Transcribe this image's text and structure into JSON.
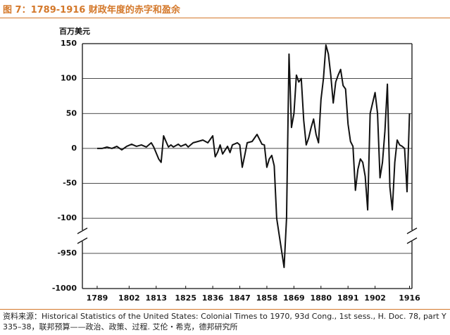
{
  "chart_data": {
    "type": "line",
    "title": "图 7：1789-1916 财政年度的赤字和盈余",
    "y_label": "百万美元",
    "source": "资料来源：Historical Statistics of the United States: Colonial Times to 1970, 93d Cong., 1st sess., H. Doc. 78, part Y 335–38，联邦预算——政治、政策、过程. 艾伦・希克，德邦研究所",
    "x": [
      1789,
      1791,
      1793,
      1795,
      1797,
      1799,
      1801,
      1803,
      1805,
      1807,
      1809,
      1811,
      1812,
      1814,
      1815,
      1816,
      1817,
      1818,
      1819,
      1820,
      1822,
      1823,
      1825,
      1826,
      1828,
      1830,
      1832,
      1834,
      1836,
      1837,
      1838,
      1839,
      1840,
      1842,
      1843,
      1844,
      1846,
      1847,
      1848,
      1849,
      1850,
      1852,
      1854,
      1856,
      1857,
      1858,
      1859,
      1860,
      1861,
      1862,
      1865,
      1866,
      1867,
      1868,
      1869,
      1870,
      1871,
      1872,
      1873,
      1874,
      1875,
      1876,
      1877,
      1878,
      1879,
      1880,
      1881,
      1882,
      1883,
      1884,
      1885,
      1886,
      1887,
      1888,
      1889,
      1890,
      1891,
      1892,
      1893,
      1894,
      1895,
      1896,
      1897,
      1898,
      1899,
      1900,
      1901,
      1902,
      1903,
      1904,
      1905,
      1906,
      1907,
      1908,
      1909,
      1910,
      1911,
      1912,
      1913,
      1914,
      1915,
      1916
    ],
    "series": [
      {
        "color": "#111111",
        "values": [
          0,
          0,
          2,
          0,
          3,
          -2,
          3,
          6,
          3,
          5,
          2,
          8,
          2,
          -15,
          -20,
          18,
          10,
          2,
          5,
          2,
          6,
          3,
          6,
          2,
          8,
          10,
          12,
          8,
          18,
          -12,
          -5,
          5,
          -8,
          3,
          -6,
          5,
          8,
          5,
          -27,
          -10,
          8,
          10,
          20,
          6,
          5,
          -27,
          -15,
          -10,
          -25,
          -100,
          -970,
          -100,
          135,
          30,
          50,
          105,
          95,
          100,
          40,
          5,
          15,
          30,
          42,
          20,
          8,
          70,
          100,
          148,
          135,
          105,
          65,
          95,
          105,
          113,
          90,
          85,
          35,
          10,
          3,
          -60,
          -30,
          -15,
          -20,
          -40,
          -88,
          50,
          65,
          80,
          50,
          -42,
          -20,
          25,
          92,
          -55,
          -88,
          -20,
          12,
          5,
          3,
          0,
          -62,
          50
        ]
      }
    ],
    "xlim": [
      1783,
      1917
    ],
    "xticks": [
      1789,
      1802,
      1813,
      1825,
      1836,
      1847,
      1858,
      1869,
      1880,
      1891,
      1902,
      1916
    ],
    "ylim": [
      -1000,
      150
    ],
    "ybreak": [
      -120,
      -930
    ],
    "yticks": [
      150,
      100,
      50,
      0,
      -50,
      -100,
      -950,
      -1000
    ],
    "grid": true
  }
}
